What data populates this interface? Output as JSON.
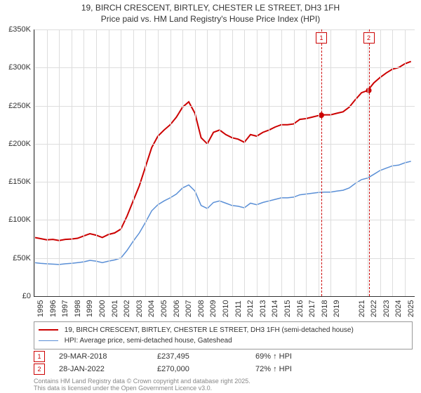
{
  "title_line1": "19, BIRCH CRESCENT, BIRTLEY, CHESTER LE STREET, DH3 1FH",
  "title_line2": "Price paid vs. HM Land Registry's House Price Index (HPI)",
  "chart": {
    "type": "line",
    "background_color": "#ffffff",
    "grid_color": "#dddddd",
    "axis_color": "#333333",
    "xlim": [
      1995,
      2025.8
    ],
    "ylim": [
      0,
      350000
    ],
    "ytick_step": 50000,
    "yticks_labels": [
      "£0",
      "£50K",
      "£100K",
      "£150K",
      "£200K",
      "£250K",
      "£300K",
      "£350K"
    ],
    "xticks": [
      1995,
      1996,
      1997,
      1998,
      1999,
      2000,
      2001,
      2002,
      2003,
      2004,
      2005,
      2006,
      2007,
      2008,
      2009,
      2010,
      2011,
      2012,
      2013,
      2014,
      2015,
      2016,
      2017,
      2018,
      2019,
      2021,
      2022,
      2023,
      2024,
      2025
    ],
    "label_fontsize": 11,
    "series": [
      {
        "name": "price_paid",
        "label": "19, BIRCH CRESCENT, BIRTLEY, CHESTER LE STREET, DH3 1FH (semi-detached house)",
        "color": "#cc0000",
        "line_width": 2,
        "x": [
          1995,
          1995.5,
          1996,
          1996.5,
          1997,
          1997.5,
          1998,
          1998.5,
          1999,
          1999.5,
          2000,
          2000.5,
          2001,
          2001.5,
          2002,
          2002.5,
          2003,
          2003.5,
          2004,
          2004.5,
          2005,
          2005.5,
          2006,
          2006.5,
          2007,
          2007.5,
          2008,
          2008.5,
          2009,
          2009.5,
          2010,
          2010.5,
          2011,
          2011.5,
          2012,
          2012.5,
          2013,
          2013.5,
          2014,
          2014.5,
          2015,
          2015.5,
          2016,
          2016.5,
          2017,
          2017.5,
          2018,
          2018.5,
          2019,
          2019.5,
          2020,
          2020.5,
          2021,
          2021.5,
          2022,
          2022.5,
          2023,
          2023.5,
          2024,
          2024.5,
          2025,
          2025.5
        ],
        "y": [
          77000,
          75500,
          74000,
          74500,
          73000,
          74500,
          75000,
          76000,
          79000,
          82000,
          80000,
          77000,
          81000,
          83000,
          88000,
          105000,
          125000,
          145000,
          170000,
          195000,
          210000,
          218000,
          225000,
          235000,
          248000,
          255000,
          240000,
          208000,
          200000,
          215000,
          218000,
          212000,
          208000,
          206000,
          202000,
          212000,
          210000,
          215000,
          218000,
          222000,
          225000,
          225000,
          226000,
          232000,
          233000,
          235000,
          237000,
          238000,
          238000,
          240000,
          242000,
          248000,
          258000,
          267000,
          270000,
          280000,
          287000,
          293000,
          298000,
          300000,
          305000,
          308000
        ]
      },
      {
        "name": "hpi",
        "label": "HPI: Average price, semi-detached house, Gateshead",
        "color": "#5a8fd6",
        "line_width": 1.5,
        "x": [
          1995,
          1995.5,
          1996,
          1996.5,
          1997,
          1997.5,
          1998,
          1998.5,
          1999,
          1999.5,
          2000,
          2000.5,
          2001,
          2001.5,
          2002,
          2002.5,
          2003,
          2003.5,
          2004,
          2004.5,
          2005,
          2005.5,
          2006,
          2006.5,
          2007,
          2007.5,
          2008,
          2008.5,
          2009,
          2009.5,
          2010,
          2010.5,
          2011,
          2011.5,
          2012,
          2012.5,
          2013,
          2013.5,
          2014,
          2014.5,
          2015,
          2015.5,
          2016,
          2016.5,
          2017,
          2017.5,
          2018,
          2018.5,
          2019,
          2019.5,
          2020,
          2020.5,
          2021,
          2021.5,
          2022,
          2022.5,
          2023,
          2023.5,
          2024,
          2024.5,
          2025,
          2025.5
        ],
        "y": [
          44000,
          43000,
          42500,
          42000,
          41500,
          42500,
          43000,
          44000,
          45000,
          47000,
          46000,
          44000,
          46000,
          47500,
          50000,
          60000,
          72000,
          83000,
          97000,
          112000,
          120000,
          125000,
          129000,
          134000,
          142000,
          146000,
          138000,
          119000,
          115000,
          123000,
          125000,
          122000,
          119000,
          118000,
          116000,
          122000,
          120000,
          123000,
          125000,
          127000,
          129000,
          129000,
          130000,
          133000,
          134000,
          135000,
          136000,
          136500,
          136500,
          138000,
          139000,
          142000,
          148000,
          153000,
          155000,
          160000,
          165000,
          168000,
          171000,
          172000,
          175000,
          177000
        ]
      }
    ],
    "vertical_markers": [
      {
        "id": "1",
        "x": 2018.24,
        "point_y": 237495,
        "dot_color": "#cc0000"
      },
      {
        "id": "2",
        "x": 2022.08,
        "point_y": 270000,
        "dot_color": "#cc0000"
      }
    ]
  },
  "legend": {
    "border_color": "#999999",
    "fontsize": 10
  },
  "marker_rows": [
    {
      "id": "1",
      "date": "29-MAR-2018",
      "price": "£237,495",
      "delta": "69% ↑ HPI"
    },
    {
      "id": "2",
      "date": "28-JAN-2022",
      "price": "£270,000",
      "delta": "72% ↑ HPI"
    }
  ],
  "footnote_line1": "Contains HM Land Registry data © Crown copyright and database right 2025.",
  "footnote_line2": "This data is licensed under the Open Government Licence v3.0."
}
